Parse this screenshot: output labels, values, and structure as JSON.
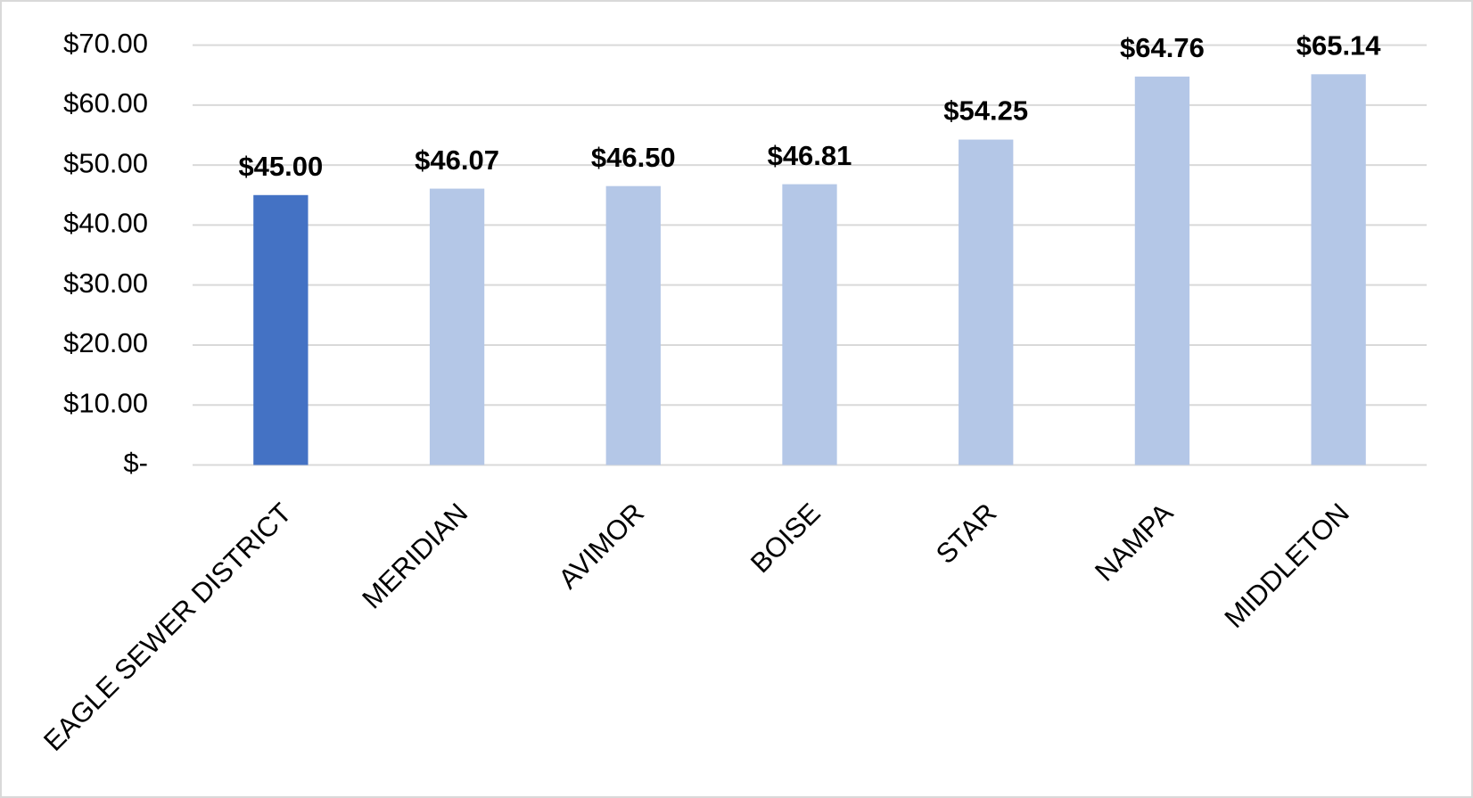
{
  "chart_data": {
    "type": "bar",
    "categories": [
      "EAGLE SEWER DISTRICT",
      "MERIDIAN",
      "AVIMOR",
      "BOISE",
      "STAR",
      "NAMPA",
      "MIDDLETON"
    ],
    "values": [
      45.0,
      46.07,
      46.5,
      46.81,
      54.25,
      64.76,
      65.14
    ],
    "value_labels": [
      "$45.00",
      "$46.07",
      "$46.50",
      "$46.81",
      "$54.25",
      "$64.76",
      "$65.14"
    ],
    "colors": [
      "#4472c4",
      "#b4c7e7",
      "#b4c7e7",
      "#b4c7e7",
      "#b4c7e7",
      "#b4c7e7",
      "#b4c7e7"
    ],
    "ylim": [
      0,
      70
    ],
    "yticks": [
      {
        "value": 0,
        "label": "$-"
      },
      {
        "value": 10,
        "label": "$10.00"
      },
      {
        "value": 20,
        "label": "$20.00"
      },
      {
        "value": 30,
        "label": "$30.00"
      },
      {
        "value": 40,
        "label": "$40.00"
      },
      {
        "value": 50,
        "label": "$50.00"
      },
      {
        "value": 60,
        "label": "$60.00"
      },
      {
        "value": 70,
        "label": "$70.00"
      }
    ],
    "grid": true
  }
}
